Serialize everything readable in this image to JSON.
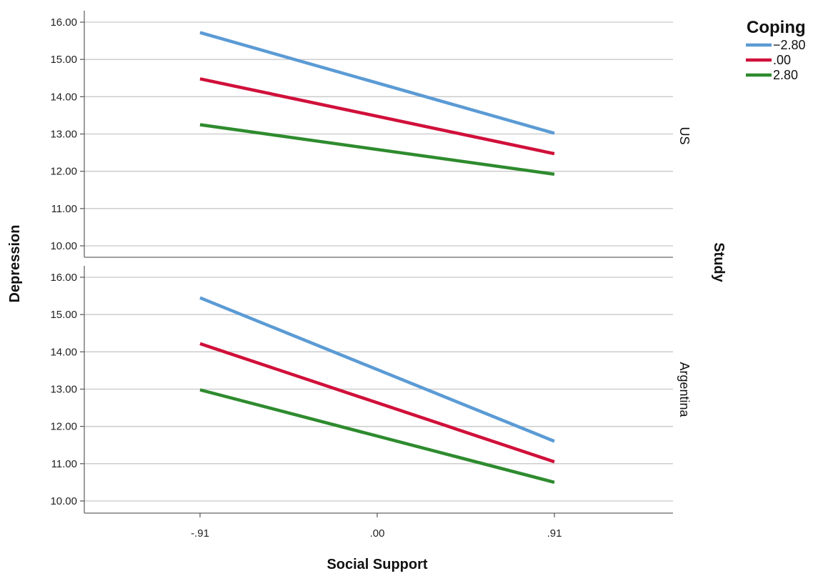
{
  "chart_data": {
    "type": "line",
    "x": [
      -0.91,
      0.0,
      0.91
    ],
    "x_tick_labels": [
      "-.91",
      ".00",
      ".91"
    ],
    "xlabel": "Social Support",
    "ylabel": "Depression",
    "facet_label": "Study",
    "ylim": [
      9.7,
      16.3
    ],
    "y_ticks": [
      10,
      11,
      12,
      13,
      14,
      15,
      16
    ],
    "y_tick_labels": [
      "10.00",
      "11.00",
      "12.00",
      "13.00",
      "14.00",
      "15.00",
      "16.00"
    ],
    "grid": true,
    "legend": {
      "title": "Coping",
      "placement": "top-right",
      "entries": [
        {
          "label": "−2.80",
          "color": "#5b9bd5"
        },
        {
          "label": ".00",
          "color": "#d0103a"
        },
        {
          "label": "2.80",
          "color": "#2e8b2e"
        }
      ]
    },
    "panels": [
      {
        "label": "US",
        "series": [
          {
            "name": "−2.80",
            "color": "#5b9bd5",
            "x": [
              -0.91,
              0.91
            ],
            "values": [
              15.72,
              13.02
            ]
          },
          {
            "name": ".00",
            "color": "#d0103a",
            "x": [
              -0.91,
              0.91
            ],
            "values": [
              14.48,
              12.47
            ]
          },
          {
            "name": "2.80",
            "color": "#2e8b2e",
            "x": [
              -0.91,
              0.91
            ],
            "values": [
              13.25,
              11.92
            ]
          }
        ]
      },
      {
        "label": "Argentina",
        "series": [
          {
            "name": "−2.80",
            "color": "#5b9bd5",
            "x": [
              -0.91,
              0.91
            ],
            "values": [
              15.45,
              11.6
            ]
          },
          {
            "name": ".00",
            "color": "#d0103a",
            "x": [
              -0.91,
              0.91
            ],
            "values": [
              14.22,
              11.05
            ]
          },
          {
            "name": "2.80",
            "color": "#2e8b2e",
            "x": [
              -0.91,
              0.91
            ],
            "values": [
              12.98,
              10.5
            ]
          }
        ]
      }
    ]
  }
}
